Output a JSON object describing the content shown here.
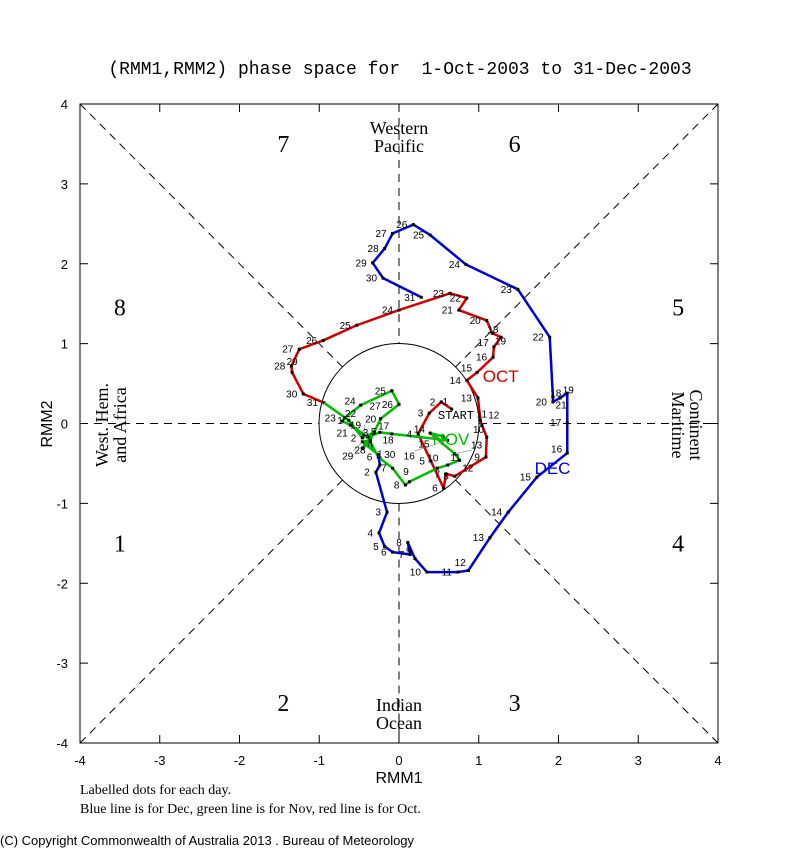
{
  "chart_data": {
    "type": "line",
    "title": "(RMM1,RMM2) phase space for  1-Oct-2003 to 31-Dec-2003",
    "xlabel": "RMM1",
    "ylabel": "RMM2",
    "xlim": [
      -4,
      4
    ],
    "ylim": [
      -4,
      4
    ],
    "xticks": [
      "-4",
      "-3",
      "-2",
      "-1",
      "0",
      "1",
      "2",
      "3",
      "4"
    ],
    "yticks": [
      "-4",
      "-3",
      "-2",
      "-1",
      "0",
      "1",
      "2",
      "3",
      "4"
    ],
    "phase_numbers": [
      "1",
      "2",
      "3",
      "4",
      "5",
      "6",
      "7",
      "8"
    ],
    "regions": {
      "top": [
        "Western",
        "Pacific"
      ],
      "bottom": [
        "Indian",
        "Ocean"
      ],
      "left": [
        "West. Hem.",
        "and Africa"
      ],
      "right": [
        "Maritime",
        "Continent"
      ]
    },
    "start_label": "START",
    "series": [
      {
        "name": "OCT",
        "color": "#cc0000",
        "points": [
          [
            0.66,
            0.18
          ],
          [
            0.53,
            0.27
          ],
          [
            0.38,
            0.13
          ],
          [
            0.24,
            -0.13
          ],
          [
            0.4,
            -0.47
          ],
          [
            0.56,
            -0.81
          ],
          [
            0.59,
            -0.63
          ],
          [
            0.7,
            -0.66
          ],
          [
            1.09,
            -0.42
          ],
          [
            1.1,
            -0.17
          ],
          [
            1.04,
            -0.02
          ],
          [
            1.02,
            0.04
          ],
          [
            0.99,
            0.32
          ],
          [
            0.85,
            0.54
          ],
          [
            0.98,
            0.64
          ],
          [
            1.18,
            0.83
          ],
          [
            1.19,
            0.96
          ],
          [
            1.28,
            1.08
          ],
          [
            1.17,
            1.13
          ],
          [
            1.1,
            1.29
          ],
          [
            0.75,
            1.42
          ],
          [
            0.85,
            1.57
          ],
          [
            0.64,
            1.63
          ],
          [
            0.0,
            1.42
          ],
          [
            -0.53,
            1.23
          ],
          [
            -0.95,
            1.04
          ],
          [
            -1.25,
            0.93
          ],
          [
            -1.35,
            0.72
          ],
          [
            -1.34,
            0.64
          ],
          [
            -1.2,
            0.37
          ],
          [
            -0.94,
            0.26
          ]
        ]
      },
      {
        "name": "NOV",
        "color": "#00bb00",
        "points": [
          [
            -0.63,
            0.04
          ],
          [
            -0.46,
            -0.18
          ],
          [
            -0.31,
            -0.11
          ],
          [
            -0.46,
            -0.31
          ],
          [
            -0.36,
            -0.23
          ],
          [
            -0.26,
            -0.42
          ],
          [
            -0.08,
            -0.56
          ],
          [
            0.08,
            -0.77
          ],
          [
            0.13,
            -0.73
          ],
          [
            0.48,
            -0.56
          ],
          [
            0.61,
            -0.52
          ],
          [
            0.76,
            -0.46
          ],
          [
            0.7,
            -0.38
          ],
          [
            0.39,
            -0.12
          ],
          [
            0.55,
            -0.16
          ],
          [
            0.61,
            -0.21
          ],
          [
            -0.09,
            -0.13
          ],
          [
            -0.24,
            -0.11
          ],
          [
            -0.39,
            -0.17
          ],
          [
            -0.44,
            -0.14
          ],
          [
            -0.61,
            -0.02
          ],
          [
            -0.71,
            0.03
          ],
          [
            -0.68,
            0.07
          ],
          [
            -0.48,
            0.23
          ],
          [
            -0.09,
            0.41
          ],
          [
            0.0,
            0.24
          ],
          [
            -0.23,
            0.06
          ],
          [
            -0.36,
            -0.21
          ],
          [
            -0.46,
            -0.23
          ],
          [
            -0.26,
            -0.39
          ]
        ]
      },
      {
        "name": "DEC",
        "color": "#0000cc",
        "points": [
          [
            -0.24,
            -0.52
          ],
          [
            -0.29,
            -0.61
          ],
          [
            -0.15,
            -1.11
          ],
          [
            -0.25,
            -1.37
          ],
          [
            -0.18,
            -1.54
          ],
          [
            -0.08,
            -1.61
          ],
          [
            0.14,
            -1.64
          ],
          [
            0.11,
            -1.49
          ],
          [
            0.2,
            -1.69
          ],
          [
            0.35,
            -1.86
          ],
          [
            0.74,
            -1.86
          ],
          [
            0.87,
            -1.84
          ],
          [
            1.14,
            -1.43
          ],
          [
            1.37,
            -1.11
          ],
          [
            1.73,
            -0.67
          ],
          [
            2.11,
            -0.37
          ],
          [
            2.11,
            0.01
          ],
          [
            2.11,
            0.38
          ],
          [
            2.02,
            0.32
          ],
          [
            1.93,
            0.27
          ],
          [
            1.93,
            0.33
          ],
          [
            1.89,
            1.08
          ],
          [
            1.49,
            1.68
          ],
          [
            0.84,
            1.99
          ],
          [
            0.39,
            2.36
          ],
          [
            0.18,
            2.49
          ],
          [
            -0.08,
            2.38
          ],
          [
            -0.18,
            2.19
          ],
          [
            -0.33,
            2.01
          ],
          [
            -0.2,
            1.82
          ],
          [
            0.28,
            1.58
          ]
        ]
      }
    ],
    "notes": [
      "Labelled dots for each day.",
      "Blue line is for Dec, green line is for Nov, red line is for Oct."
    ]
  },
  "copyright": "(C) Copyright Commonwealth of Australia 2013 . Bureau of Meteorology"
}
